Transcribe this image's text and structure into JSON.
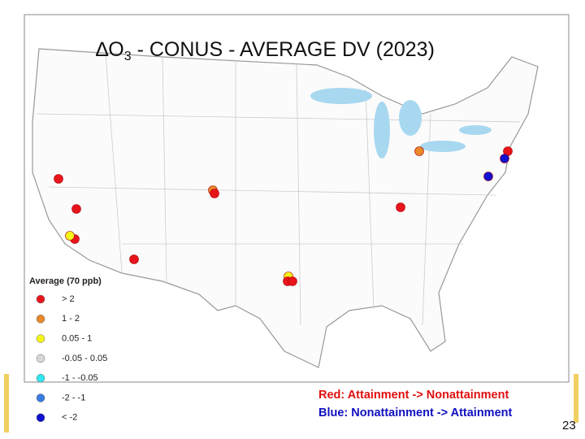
{
  "title": {
    "delta": "∆O",
    "subscript": "3",
    "rest": " - CONUS - AVERAGE DV (2023)"
  },
  "legend": {
    "title": "Average (70 ppb)",
    "items": [
      {
        "label": "> 2",
        "color": "#e8141c"
      },
      {
        "label": "1 - 2",
        "color": "#e8892a"
      },
      {
        "label": "0.05 - 1",
        "color": "#f5f51a"
      },
      {
        "label": "-0.05 - 0.05",
        "color": "#d8d8d8"
      },
      {
        "label": "-1 - -0.05",
        "color": "#33e5f0"
      },
      {
        "label": "-2 - -1",
        "color": "#3a7be0"
      },
      {
        "label": "< -2",
        "color": "#1010d0"
      }
    ]
  },
  "annotations": [
    {
      "text": "Red: Attainment -> Nonattainment",
      "color": "#e01010"
    },
    {
      "text": "Blue: Nonattainment -> Attainment",
      "color": "#1010c0"
    }
  ],
  "slide_number": "23"
}
